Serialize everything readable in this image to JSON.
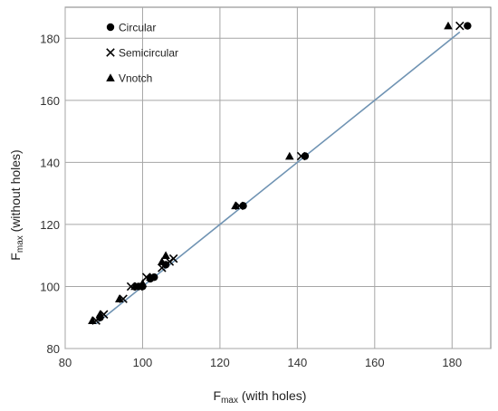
{
  "chart_data": {
    "type": "scatter",
    "xlabel": {
      "main": "F",
      "sub": "max",
      "rest": " (with holes)"
    },
    "ylabel": {
      "main": "F",
      "sub": "max",
      "rest": " (without holes)"
    },
    "xlim": [
      80,
      190
    ],
    "ylim": [
      80,
      190
    ],
    "xticks": [
      80,
      100,
      120,
      140,
      160,
      180
    ],
    "yticks": [
      80,
      100,
      120,
      140,
      160,
      180
    ],
    "grid": true,
    "legend_position": "top-left",
    "fit_line": {
      "from": [
        88,
        88
      ],
      "to": [
        182,
        182
      ],
      "color": "#6f93b3"
    },
    "series": [
      {
        "name": "Circular",
        "marker": "circle",
        "color": "#000000",
        "points": [
          [
            89,
            90
          ],
          [
            99,
            100
          ],
          [
            100,
            100
          ],
          [
            102,
            102.5
          ],
          [
            103,
            103
          ],
          [
            106,
            107
          ],
          [
            126,
            126
          ],
          [
            142,
            142
          ],
          [
            184,
            184
          ]
        ]
      },
      {
        "name": "Semicircular",
        "marker": "x",
        "color": "#000000",
        "points": [
          [
            88,
            89
          ],
          [
            90,
            91
          ],
          [
            95,
            96
          ],
          [
            97,
            100
          ],
          [
            99,
            100
          ],
          [
            101,
            103
          ],
          [
            105,
            106
          ],
          [
            107,
            108
          ],
          [
            108,
            109
          ],
          [
            125,
            126
          ],
          [
            141,
            142
          ],
          [
            182,
            184
          ]
        ]
      },
      {
        "name": "Vnotch",
        "marker": "triangle",
        "color": "#000000",
        "points": [
          [
            87,
            89
          ],
          [
            89,
            91
          ],
          [
            94,
            96
          ],
          [
            98,
            100
          ],
          [
            100,
            101
          ],
          [
            102,
            103
          ],
          [
            105,
            108
          ],
          [
            106,
            110
          ],
          [
            124,
            126
          ],
          [
            138,
            142
          ],
          [
            179,
            184
          ]
        ]
      }
    ]
  }
}
